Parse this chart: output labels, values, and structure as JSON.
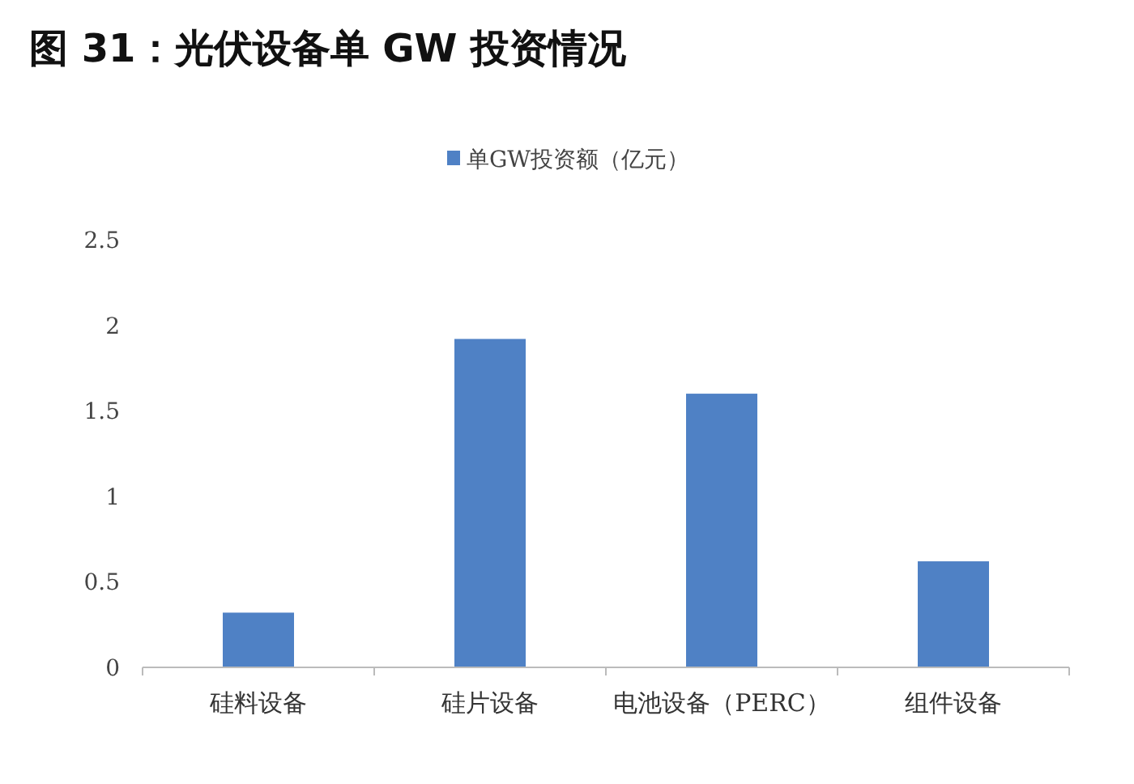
{
  "chart_data": {
    "type": "bar",
    "title": "图 31：光伏设备单 GW 投资情况",
    "categories": [
      "硅料设备",
      "硅片设备",
      "电池设备（PERC）",
      "组件设备"
    ],
    "series": [
      {
        "name": "单GW投资额（亿元）",
        "color": "#4f81c5",
        "values": [
          0.32,
          1.92,
          1.6,
          0.62
        ]
      }
    ],
    "ylim": [
      0,
      2.5
    ],
    "yticks": [
      0,
      0.5,
      1,
      1.5,
      2,
      2.5
    ],
    "legend": "top",
    "grid": false
  }
}
